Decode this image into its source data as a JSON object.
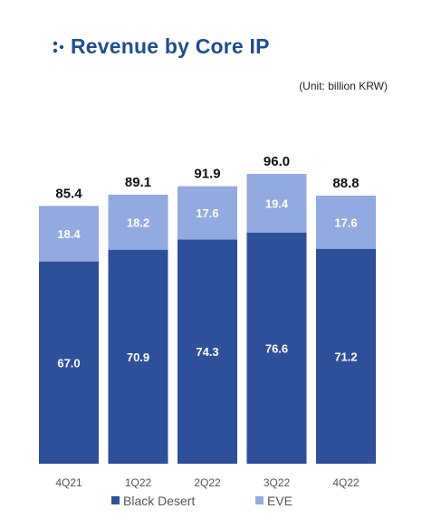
{
  "title": "Revenue by Core IP",
  "unit_note": "(Unit: billion KRW)",
  "chart_data": {
    "type": "bar",
    "stacked": true,
    "categories": [
      "4Q21",
      "1Q22",
      "2Q22",
      "3Q22",
      "4Q22"
    ],
    "series": [
      {
        "name": "Black Desert",
        "values": [
          67.0,
          70.9,
          74.3,
          76.6,
          71.2
        ],
        "color": "#2e4f9a"
      },
      {
        "name": "EVE",
        "values": [
          18.4,
          18.2,
          17.6,
          19.4,
          17.6
        ],
        "color": "#92aae0"
      }
    ],
    "totals": [
      85.4,
      89.1,
      91.9,
      96.0,
      88.8
    ],
    "title": "Revenue by Core IP",
    "ylim": [
      0,
      96
    ],
    "grid": false,
    "legend": "bottom"
  },
  "colors": {
    "title": "#1f4e8c",
    "black_desert": "#2e4f9a",
    "eve": "#92aae0"
  }
}
